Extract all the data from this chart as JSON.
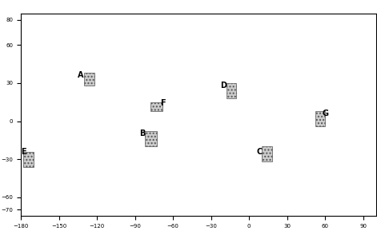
{
  "title": "",
  "background_color": "#ffffff",
  "map_extent": [
    -180,
    100,
    -75,
    85
  ],
  "lat_ticks": [
    80,
    60,
    30,
    0,
    -30,
    -60,
    -70
  ],
  "lon_ticks": [
    -180,
    -150,
    -120,
    -90,
    -60,
    -30,
    0,
    30,
    60,
    90
  ],
  "regions": [
    {
      "label": "A",
      "lon1": -130,
      "lat1": 28,
      "lon2": -122,
      "lat2": 38,
      "label_lon": -133,
      "label_lat": 36
    },
    {
      "label": "B",
      "lon1": -82,
      "lat1": -20,
      "lon2": -73,
      "lat2": -8,
      "label_lon": -84,
      "label_lat": -10
    },
    {
      "label": "C",
      "lon1": 10,
      "lat1": -32,
      "lon2": 18,
      "lat2": -20,
      "label_lon": 8,
      "label_lat": -24
    },
    {
      "label": "D",
      "lon1": -18,
      "lat1": 18,
      "lon2": -10,
      "lat2": 30,
      "label_lon": -20,
      "label_lat": 28
    },
    {
      "label": "E",
      "lon1": -178,
      "lat1": -36,
      "lon2": -170,
      "lat2": -24,
      "label_lon": -178,
      "label_lat": -24
    },
    {
      "label": "F",
      "lon1": -78,
      "lat1": 8,
      "lon2": -68,
      "lat2": 15,
      "label_lon": -68,
      "label_lat": 14
    },
    {
      "label": "G",
      "lon1": 52,
      "lat1": -4,
      "lon2": 60,
      "lat2": 8,
      "label_lon": 60,
      "label_lat": 6
    }
  ],
  "hatch_pattern": "....",
  "region_edge_color": "#555555",
  "region_fill_color": "#cccccc",
  "font_size_labels": 7,
  "tick_font_size": 5
}
